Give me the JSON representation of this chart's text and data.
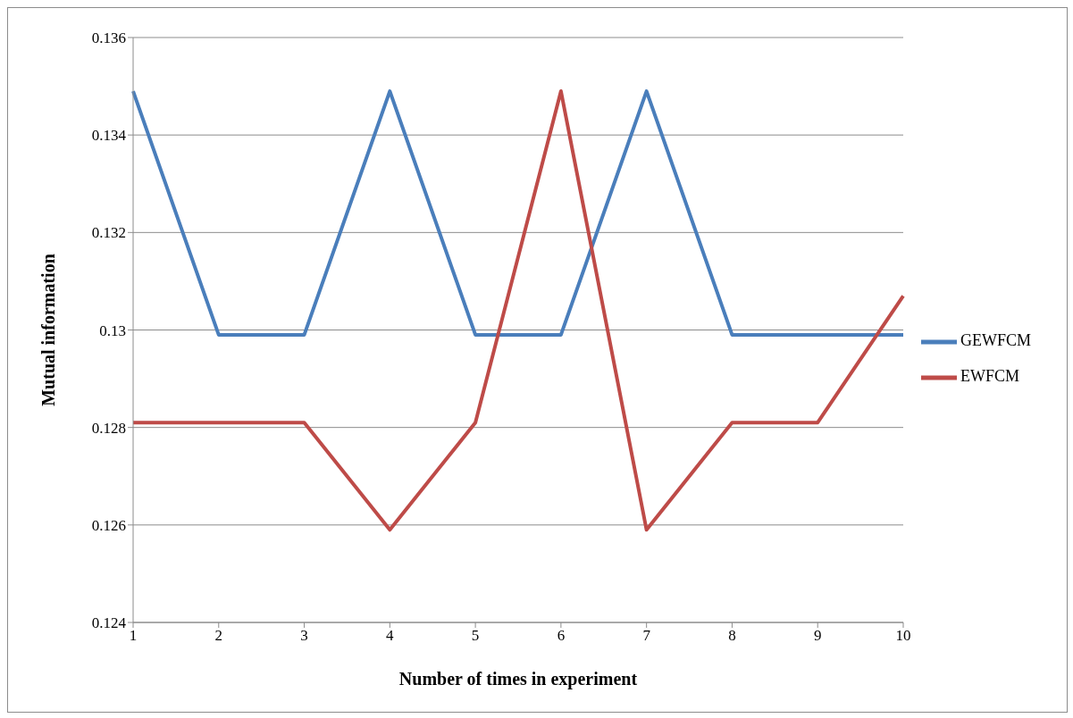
{
  "chart_data": {
    "type": "line",
    "xlabel": "Number of times in experiment",
    "ylabel": "Mutual information",
    "categories": [
      "1",
      "2",
      "3",
      "4",
      "5",
      "6",
      "7",
      "8",
      "9",
      "10"
    ],
    "series": [
      {
        "name": "GEWFCM",
        "color": "#4a7ebb",
        "values": [
          0.1349,
          0.1299,
          0.1299,
          0.1349,
          0.1299,
          0.1299,
          0.1349,
          0.1299,
          0.1299,
          0.1299
        ]
      },
      {
        "name": "EWFCM",
        "color": "#be4b48",
        "values": [
          0.1281,
          0.1281,
          0.1281,
          0.1259,
          0.1281,
          0.1349,
          0.1259,
          0.1281,
          0.1281,
          0.1307
        ]
      }
    ],
    "ylim": [
      0.124,
      0.136
    ],
    "yticks": [
      0.124,
      0.126,
      0.128,
      0.13,
      0.132,
      0.134,
      0.136
    ],
    "grid": "y",
    "legend": "right",
    "marker": "none",
    "line_style": "solid"
  }
}
